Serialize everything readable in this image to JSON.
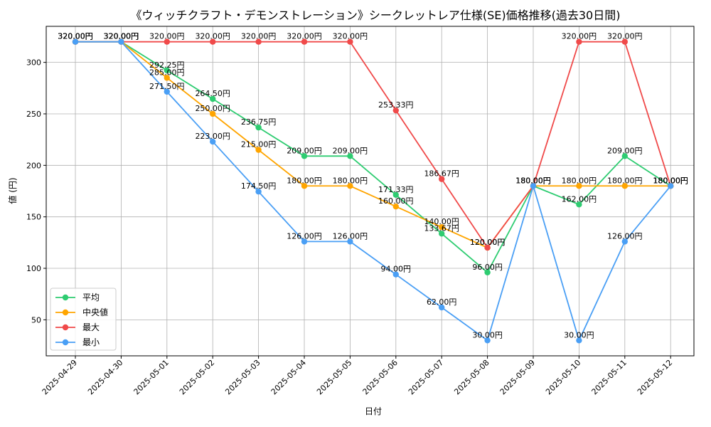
{
  "chart_data": {
    "type": "line",
    "title": "《ウィッチクラフト・デモンストレーション》シークレットレア仕様(SE)価格推移(過去30日間)",
    "xlabel": "日付",
    "ylabel": "値 (円)",
    "x": [
      "2025-04-29",
      "2025-04-30",
      "2025-05-01",
      "2025-05-02",
      "2025-05-03",
      "2025-05-04",
      "2025-05-05",
      "2025-05-06",
      "2025-05-07",
      "2025-05-08",
      "2025-05-09",
      "2025-05-10",
      "2025-05-11",
      "2025-05-12"
    ],
    "ylim": [
      15,
      335
    ],
    "yticks": [
      50,
      100,
      150,
      200,
      250,
      300
    ],
    "grid": true,
    "legend_position": "lower-left",
    "series": [
      {
        "name": "平均",
        "color": "#2ecc71",
        "values": [
          320,
          320,
          292.25,
          264.5,
          236.75,
          209,
          209,
          171.33,
          133.67,
          96,
          180,
          162,
          209,
          180
        ],
        "labels": [
          "320.00円",
          "320.00円",
          "292.25円",
          "264.50円",
          "236.75円",
          "209.00円",
          "209.00円",
          "171.33円",
          "133.67円",
          "96.00円",
          "180.00円",
          "162.00円",
          "209.00円",
          "180.00円"
        ]
      },
      {
        "name": "中央値",
        "color": "#ffa500",
        "values": [
          320,
          320,
          285,
          250,
          215,
          180,
          180,
          160,
          140,
          120,
          180,
          180,
          180,
          180
        ],
        "labels": [
          "320.00円",
          "320.00円",
          "285.00円",
          "250.00円",
          "215.00円",
          "180.00円",
          "180.00円",
          "160.00円",
          "140.00円",
          "120.00円",
          "180.00円",
          "180.00円",
          "180.00円",
          "180.00円"
        ]
      },
      {
        "name": "最大",
        "color": "#f04a4a",
        "values": [
          320,
          320,
          320,
          320,
          320,
          320,
          320,
          253.33,
          186.67,
          120,
          180,
          320,
          320,
          180
        ],
        "labels": [
          "320.00円",
          "320.00円",
          "320.00円",
          "320.00円",
          "320.00円",
          "320.00円",
          "320.00円",
          "253.33円",
          "186.67円",
          "120.00円",
          "180.00円",
          "320.00円",
          "320.00円",
          "180.00円"
        ]
      },
      {
        "name": "最小",
        "color": "#4a9ff5",
        "values": [
          320,
          320,
          271.5,
          223,
          174.5,
          126,
          126,
          94,
          62,
          30,
          180,
          30,
          126,
          180
        ],
        "labels": [
          "320.00円",
          "320.00円",
          "271.50円",
          "223.00円",
          "174.50円",
          "126.00円",
          "126.00円",
          "94.00円",
          "62.00円",
          "30.00円",
          "180.00円",
          "30.00円",
          "126.00円",
          "180.00円"
        ]
      }
    ]
  }
}
